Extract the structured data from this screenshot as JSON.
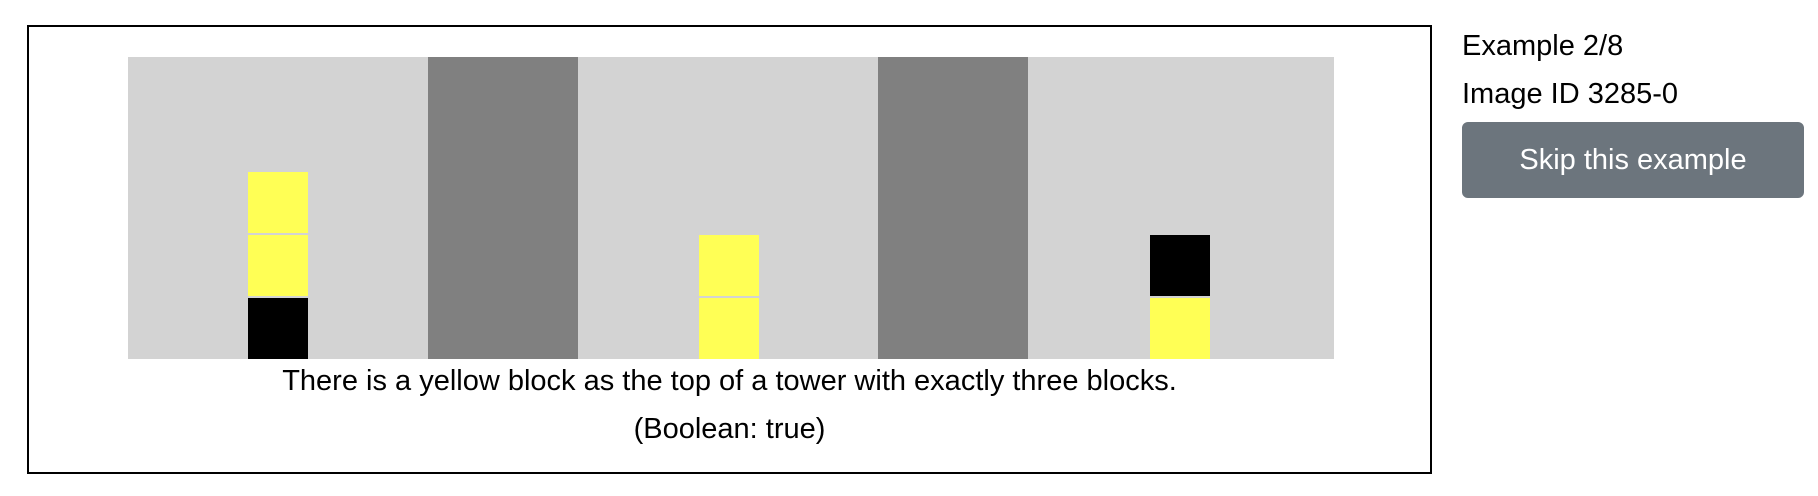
{
  "example": {
    "caption": "There is a yellow block as the top of a tower with exactly three blocks.",
    "answer": "(Boolean: true)",
    "scene": {
      "background_color": "#d3d3d3",
      "divider_color": "#808080",
      "panels": [
        {
          "tower": [
            "black",
            "yellow",
            "yellow"
          ]
        },
        {
          "tower": [
            "yellow",
            "yellow"
          ]
        },
        {
          "tower": [
            "yellow",
            "black"
          ]
        }
      ],
      "block_colors": {
        "yellow": "#ffff55",
        "black": "#000000"
      }
    }
  },
  "sidebar": {
    "progress": "Example 2/8",
    "image_id": "Image ID 3285-0",
    "skip_label": "Skip this example"
  }
}
